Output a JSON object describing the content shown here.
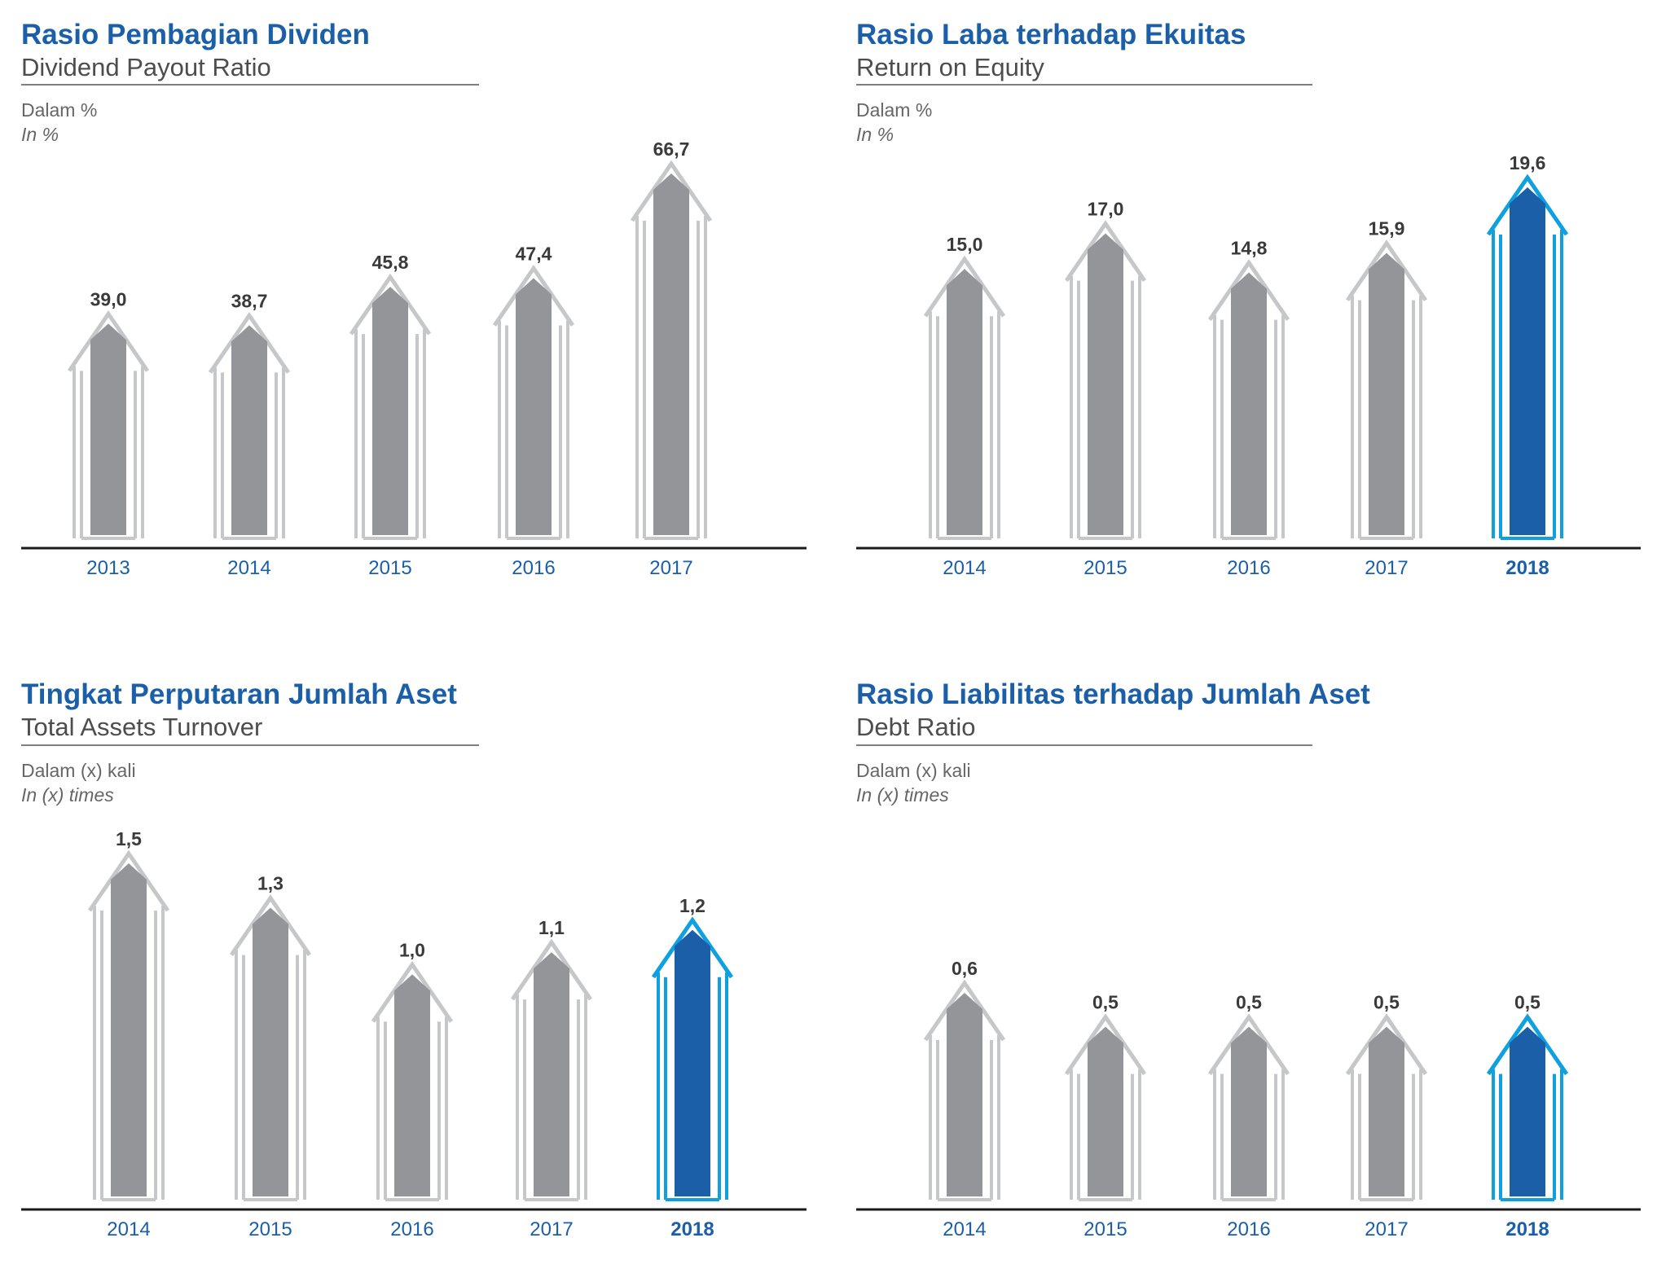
{
  "colors": {
    "title": "#1a5fa8",
    "bar": "#939598",
    "outline": "#c6c7c9",
    "highlight_bar": "#1a5fa8",
    "highlight_outline": "#0fa0e0",
    "axis": "#1a1a1a"
  },
  "chart_data": [
    {
      "type": "bar",
      "title": "Rasio Pembagian Dividen",
      "subtitle": "Dividend Payout Ratio",
      "unit": "Dalam %",
      "unit_en": "In %",
      "categories": [
        "2013",
        "2014",
        "2015",
        "2016",
        "2017"
      ],
      "values": [
        39.0,
        38.7,
        45.8,
        47.4,
        66.7
      ],
      "labels": [
        "39,0",
        "38,7",
        "45,8",
        "47,4",
        "66,7"
      ],
      "highlight": [],
      "ylim": [
        0,
        75
      ]
    },
    {
      "type": "bar",
      "title": "Rasio Laba terhadap Ekuitas",
      "subtitle": "Return on Equity",
      "unit": "Dalam %",
      "unit_en": "In %",
      "categories": [
        "2014",
        "2015",
        "2016",
        "2017",
        "2018"
      ],
      "values": [
        15.0,
        17.0,
        14.8,
        15.9,
        19.6
      ],
      "labels": [
        "15,0",
        "17,0",
        "14,8",
        "15,9",
        "19,6"
      ],
      "highlight": [
        4
      ],
      "ylim": [
        0,
        22
      ]
    },
    {
      "type": "bar",
      "title": "Tingkat Perputaran Jumlah Aset",
      "subtitle": "Total Assets Turnover",
      "unit": "Dalam (x) kali",
      "unit_en": "In (x) times",
      "categories": [
        "2014",
        "2015",
        "2016",
        "2017",
        "2018"
      ],
      "values": [
        1.5,
        1.3,
        1.0,
        1.1,
        1.2
      ],
      "labels": [
        "1,5",
        "1,3",
        "1,0",
        "1,1",
        "1,2"
      ],
      "highlight": [
        4
      ],
      "ylim": [
        0,
        1.7
      ]
    },
    {
      "type": "bar",
      "title": "Rasio Liabilitas terhadap Jumlah Aset",
      "subtitle": "Debt Ratio",
      "unit": "Dalam (x) kali",
      "unit_en": "In (x) times",
      "categories": [
        "2014",
        "2015",
        "2016",
        "2017",
        "2018"
      ],
      "values": [
        0.6,
        0.5,
        0.5,
        0.5,
        0.5
      ],
      "labels": [
        "0,6",
        "0,5",
        "0,5",
        "0,5",
        "0,5"
      ],
      "highlight": [
        4
      ],
      "ylim": [
        0,
        1.7
      ]
    }
  ]
}
